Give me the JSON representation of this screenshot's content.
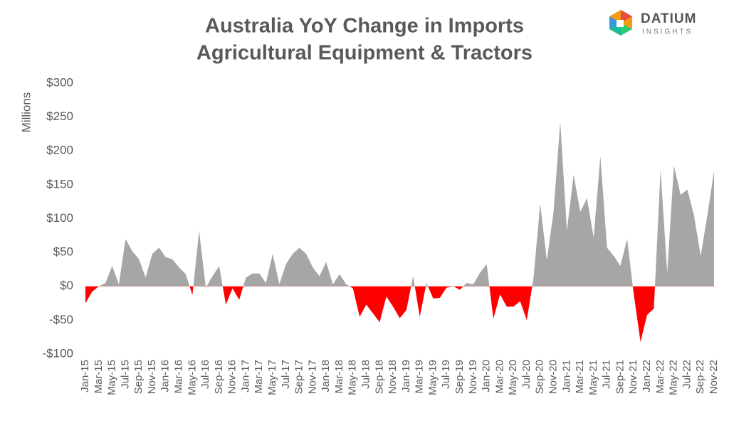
{
  "chart_data": {
    "type": "area",
    "title": "Australia YoY Change in Imports",
    "subtitle": "Agricultural Equipment & Tractors",
    "y_label": "Millions",
    "logo": {
      "name": "DATIUM",
      "tagline": "INSIGHTS"
    },
    "categories": [
      "Jan-15",
      null,
      "Mar-15",
      null,
      "May-15",
      null,
      "Jul-15",
      null,
      "Sep-15",
      null,
      "Nov-15",
      null,
      "Jan-16",
      null,
      "Mar-16",
      null,
      "May-16",
      null,
      "Jul-16",
      null,
      "Sep-16",
      null,
      "Nov-16",
      null,
      "Jan-17",
      null,
      "Mar-17",
      null,
      "May-17",
      null,
      "Jul-17",
      null,
      "Sep-17",
      null,
      "Nov-17",
      null,
      "Jan-18",
      null,
      "Mar-18",
      null,
      "May-18",
      null,
      "Jul-18",
      null,
      "Sep-18",
      null,
      "Nov-18",
      null,
      "Jan-19",
      null,
      "Mar-19",
      null,
      "May-19",
      null,
      "Jul-19",
      null,
      "Sep-19",
      null,
      "Nov-19",
      null,
      "Jan-20",
      null,
      "Mar-20",
      null,
      "May-20",
      null,
      "Jul-20",
      null,
      "Sep-20",
      null,
      "Nov-20",
      null,
      "Jan-21",
      null,
      "Mar-21",
      null,
      "May-21",
      null,
      "Jul-21",
      null,
      "Sep-21",
      null,
      "Nov-21",
      null,
      "Jan-22",
      null,
      "Mar-22",
      null,
      "May-22",
      null,
      "Jul-22",
      null,
      "Sep-22",
      null,
      "Nov-22"
    ],
    "values": [
      -25,
      -8,
      0,
      5,
      30,
      3,
      70,
      52,
      40,
      13,
      48,
      57,
      43,
      40,
      28,
      18,
      -13,
      82,
      -2,
      15,
      30,
      -27,
      -3,
      -20,
      13,
      19,
      19,
      5,
      48,
      3,
      33,
      48,
      57,
      48,
      28,
      15,
      36,
      3,
      18,
      3,
      -3,
      -45,
      -27,
      -40,
      -53,
      -15,
      -30,
      -47,
      -35,
      15,
      -45,
      5,
      -18,
      -17,
      -2,
      0,
      -5,
      5,
      3,
      20,
      33,
      -48,
      -12,
      -30,
      -30,
      -22,
      -50,
      12,
      122,
      38,
      110,
      243,
      82,
      165,
      110,
      130,
      72,
      192,
      57,
      45,
      30,
      70,
      -12,
      -82,
      -42,
      -33,
      172,
      20,
      178,
      135,
      143,
      105,
      45,
      105,
      170
    ],
    "color": "#a6a6a6",
    "negative_color": "#ff0000",
    "ylim": [
      -100,
      300
    ],
    "yticks": [
      {
        "value": -100,
        "label": "-$100"
      },
      {
        "value": -50,
        "label": "-$50"
      },
      {
        "value": 0,
        "label": "$0"
      },
      {
        "value": 50,
        "label": "$50"
      },
      {
        "value": 100,
        "label": "$100"
      },
      {
        "value": 150,
        "label": "$150"
      },
      {
        "value": 200,
        "label": "$200"
      },
      {
        "value": 250,
        "label": "$250"
      },
      {
        "value": 300,
        "label": "$300"
      }
    ],
    "grid": false
  }
}
